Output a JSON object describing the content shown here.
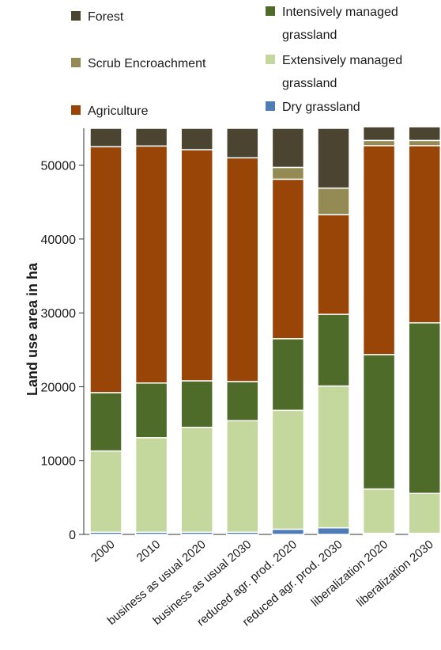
{
  "chart_data": {
    "type": "bar",
    "stacked": true,
    "ylabel": "Land use area in ha",
    "xlabel": "",
    "title": "",
    "ylim": [
      0,
      55000
    ],
    "yticks": [
      0,
      10000,
      20000,
      30000,
      40000,
      50000
    ],
    "yticklabels": [
      "0",
      "10000",
      "20000",
      "30000",
      "40000",
      "50000"
    ],
    "categories": [
      "2000",
      "2010",
      "business as usual 2020",
      "business as usual 2030",
      "reduced agr. prod. 2020",
      "reduced agr. prod. 2030",
      "liberalization 2020",
      "liberalization 2030"
    ],
    "legend_position": "top",
    "series": [
      {
        "name": "Dry grassland",
        "color": "#4f7bb6",
        "values": [
          300,
          300,
          300,
          300,
          700,
          900,
          150,
          150
        ]
      },
      {
        "name": "Extensively managed grassland",
        "color": "#c4d79c",
        "values": [
          11000,
          12800,
          14200,
          15100,
          16100,
          19200,
          6000,
          5400
        ]
      },
      {
        "name": "Intensively managed grassland",
        "color": "#4e6b2a",
        "values": [
          7900,
          7400,
          6300,
          5300,
          9700,
          9700,
          18200,
          23100
        ]
      },
      {
        "name": "Agriculture",
        "color": "#9a4508",
        "values": [
          33300,
          32100,
          31300,
          30300,
          21600,
          13500,
          28300,
          24000
        ]
      },
      {
        "name": "Scrub Encroachment",
        "color": "#948a53",
        "values": [
          0,
          0,
          0,
          0,
          1600,
          3600,
          700,
          700
        ]
      },
      {
        "name": "Forest",
        "color": "#4a4431",
        "values": [
          2500,
          2400,
          2900,
          4000,
          5300,
          8100,
          1850,
          1850
        ]
      }
    ]
  },
  "legend": [
    {
      "label": "Forest",
      "color": "#4a4431"
    },
    {
      "label": "Scrub Encroachment",
      "color": "#948a53"
    },
    {
      "label": "Agriculture",
      "color": "#9a4508"
    },
    {
      "label_line1": "Intensively managed",
      "label_line2": "grassland",
      "color": "#4e6b2a"
    },
    {
      "label_line1": "Extensively managed",
      "label_line2": "grassland",
      "color": "#c4d79c"
    },
    {
      "label": "Dry grassland",
      "color": "#4f7bb6"
    }
  ]
}
